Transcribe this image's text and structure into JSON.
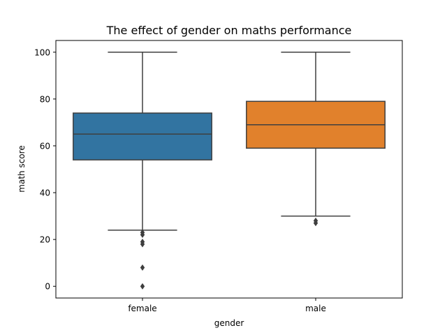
{
  "chart_data": {
    "type": "box",
    "title": "The effect of gender on maths performance",
    "xlabel": "gender",
    "ylabel": "math score",
    "ylim": [
      -5,
      105
    ],
    "yticks": [
      0,
      20,
      40,
      60,
      80,
      100
    ],
    "grid": false,
    "categories": [
      "female",
      "male"
    ],
    "boxes": [
      {
        "category": "female",
        "color": "#3274a1",
        "whisker_low": 24,
        "q1": 54,
        "median": 65,
        "q3": 74,
        "whisker_high": 100,
        "outliers": [
          0,
          8,
          18,
          19,
          22,
          23
        ]
      },
      {
        "category": "male",
        "color": "#e1812c",
        "whisker_low": 30,
        "q1": 59,
        "median": 69,
        "q3": 79,
        "whisker_high": 100,
        "outliers": [
          27,
          28
        ]
      }
    ]
  }
}
